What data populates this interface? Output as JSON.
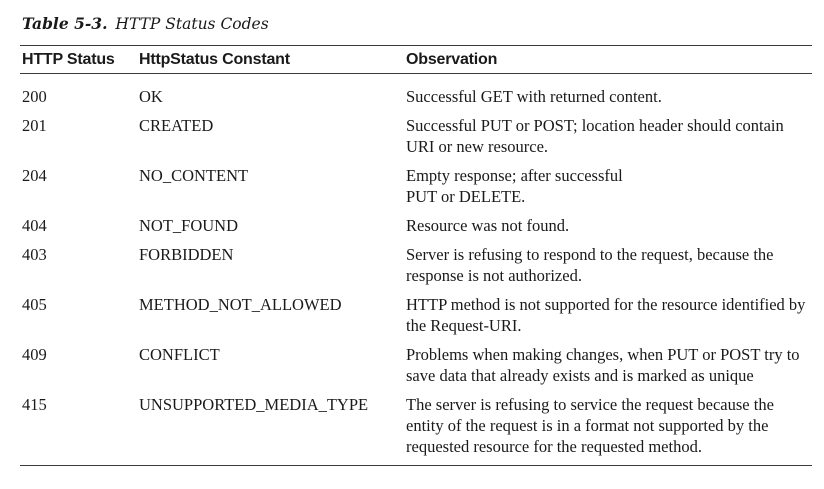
{
  "caption": {
    "number": "Table 5-3.",
    "title": "HTTP Status Codes"
  },
  "headers": {
    "status": "HTTP Status",
    "constant": "HttpStatus Constant",
    "observation": "Observation"
  },
  "rows": [
    {
      "status": "200",
      "constant": "OK",
      "observation": "Successful GET  with  returned content."
    },
    {
      "status": "201",
      "constant": "CREATED",
      "observation": "Successful PUT or POST; location header should contain URI or new resource."
    },
    {
      "status": "204",
      "constant": "NO_CONTENT",
      "observation": "Empty  response; after successful PUT or DELETE."
    },
    {
      "status": "404",
      "constant": "NOT_FOUND",
      "observation": "Resource was not found."
    },
    {
      "status": "403",
      "constant": "FORBIDDEN",
      "observation": "Server is refusing to respond to the request, because the response is not authorized."
    },
    {
      "status": "405",
      "constant": "METHOD_NOT_ALLOWED",
      "observation": "HTTP method is not supported for the resource identified by the Request-URI."
    },
    {
      "status": "409",
      "constant": "CONFLICT",
      "observation": "Problems when making changes, when PUT or POST try  to  save  data that already exists and is marked as unique"
    },
    {
      "status": "415",
      "constant": "UNSUPPORTED_MEDIA_TYPE",
      "observation": "The server is refusing to service the request because the entity of the request is in a format not supported by the requested resource for the requested method."
    }
  ]
}
